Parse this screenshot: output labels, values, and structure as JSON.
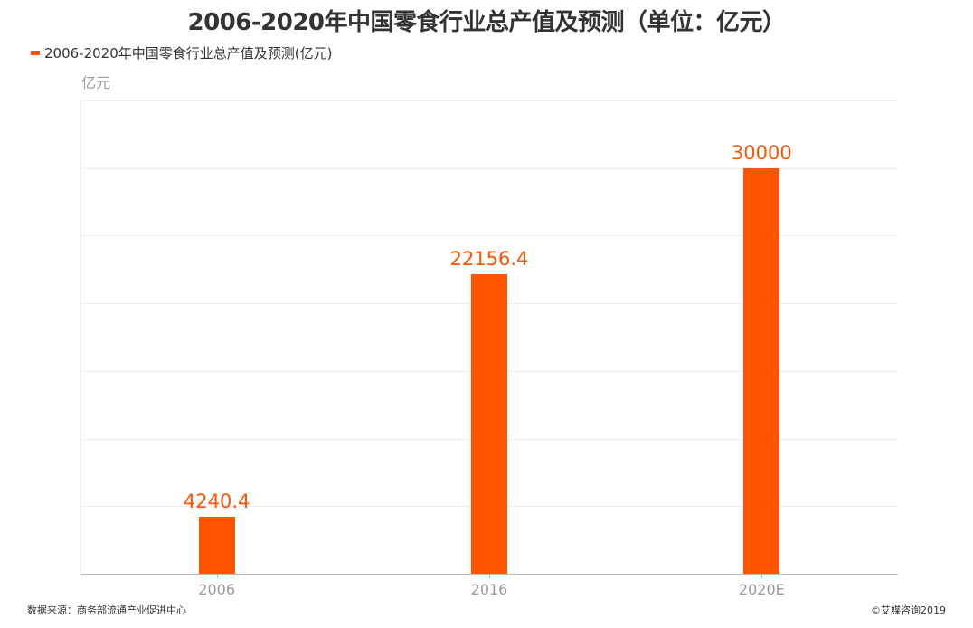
{
  "header": {
    "title": "2006-2020年中国零食行业总产值及预测（单位：亿元）"
  },
  "legend": {
    "items": [
      {
        "label": "2006-2020年中国零食行业总产值及预测(亿元)",
        "color": "#ff5400"
      }
    ]
  },
  "axis": {
    "unit_label": "亿元",
    "y_ticks": [
      "0",
      "5K",
      "10K",
      "15K",
      "20K",
      "25K",
      "30K",
      "35K"
    ],
    "x_ticks": [
      "2006",
      "2016",
      "2020E"
    ]
  },
  "footer": {
    "source": "数据来源：商务部流通产业促进中心",
    "copyright": "©艾媒咨询2019"
  },
  "colors": {
    "bar": "#ff5400",
    "label": "#ff5400",
    "axis_text": "#999999",
    "title": "#333333"
  },
  "chart_data": {
    "type": "bar",
    "title": "2006-2020年中国零食行业总产值及预测（单位：亿元）",
    "categories": [
      "2006",
      "2016",
      "2020E"
    ],
    "series": [
      {
        "name": "2006-2020年中国零食行业总产值及预测(亿元)",
        "values": [
          4240.4,
          22156.4,
          30000
        ]
      }
    ],
    "data_labels": [
      "4240.4",
      "22156.4",
      "30000"
    ],
    "xlabel": "",
    "ylabel": "亿元",
    "ylim": [
      0,
      35000
    ],
    "y_ticks": [
      0,
      5000,
      10000,
      15000,
      20000,
      25000,
      30000,
      35000
    ],
    "grid": true,
    "legend_position": "top-left"
  }
}
